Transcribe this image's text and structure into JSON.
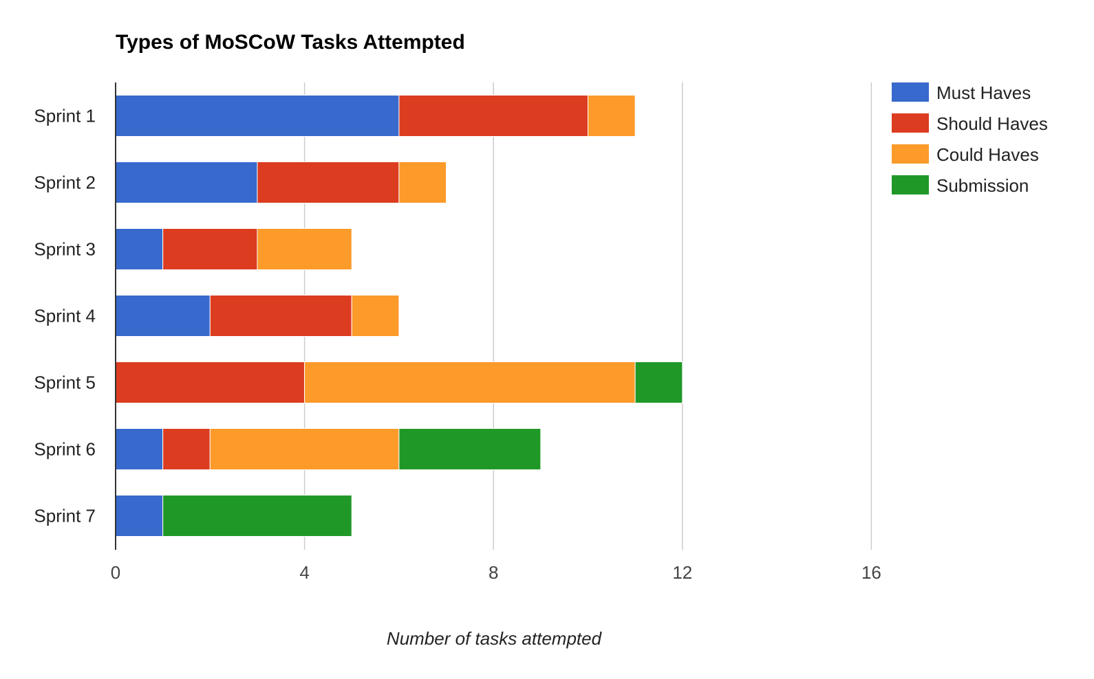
{
  "chart_data": {
    "type": "bar",
    "orientation": "horizontal",
    "stacked": true,
    "title": "Types of MoSCoW Tasks Attempted",
    "xlabel": "Number of tasks attempted",
    "ylabel": "",
    "xlim": [
      0,
      20
    ],
    "xticks": [
      "0",
      "4",
      "8",
      "12",
      "16"
    ],
    "grid": true,
    "legend_position": "right",
    "categories": [
      "Sprint 1",
      "Sprint 2",
      "Sprint 3",
      "Sprint 4",
      "Sprint 5",
      "Sprint 6",
      "Sprint 7"
    ],
    "series": [
      {
        "name": "Must Haves",
        "color": "#3869CC",
        "values": [
          6,
          3,
          1,
          2,
          0,
          1,
          1
        ]
      },
      {
        "name": "Should Haves",
        "color": "#DC3C20",
        "values": [
          4,
          3,
          2,
          3,
          4,
          1,
          0
        ]
      },
      {
        "name": "Could Haves",
        "color": "#FC9A2A",
        "values": [
          1,
          1,
          2,
          1,
          7,
          4,
          0
        ]
      },
      {
        "name": "Submission",
        "color": "#209827",
        "values": [
          0,
          0,
          0,
          0,
          1,
          3,
          4
        ]
      }
    ]
  }
}
